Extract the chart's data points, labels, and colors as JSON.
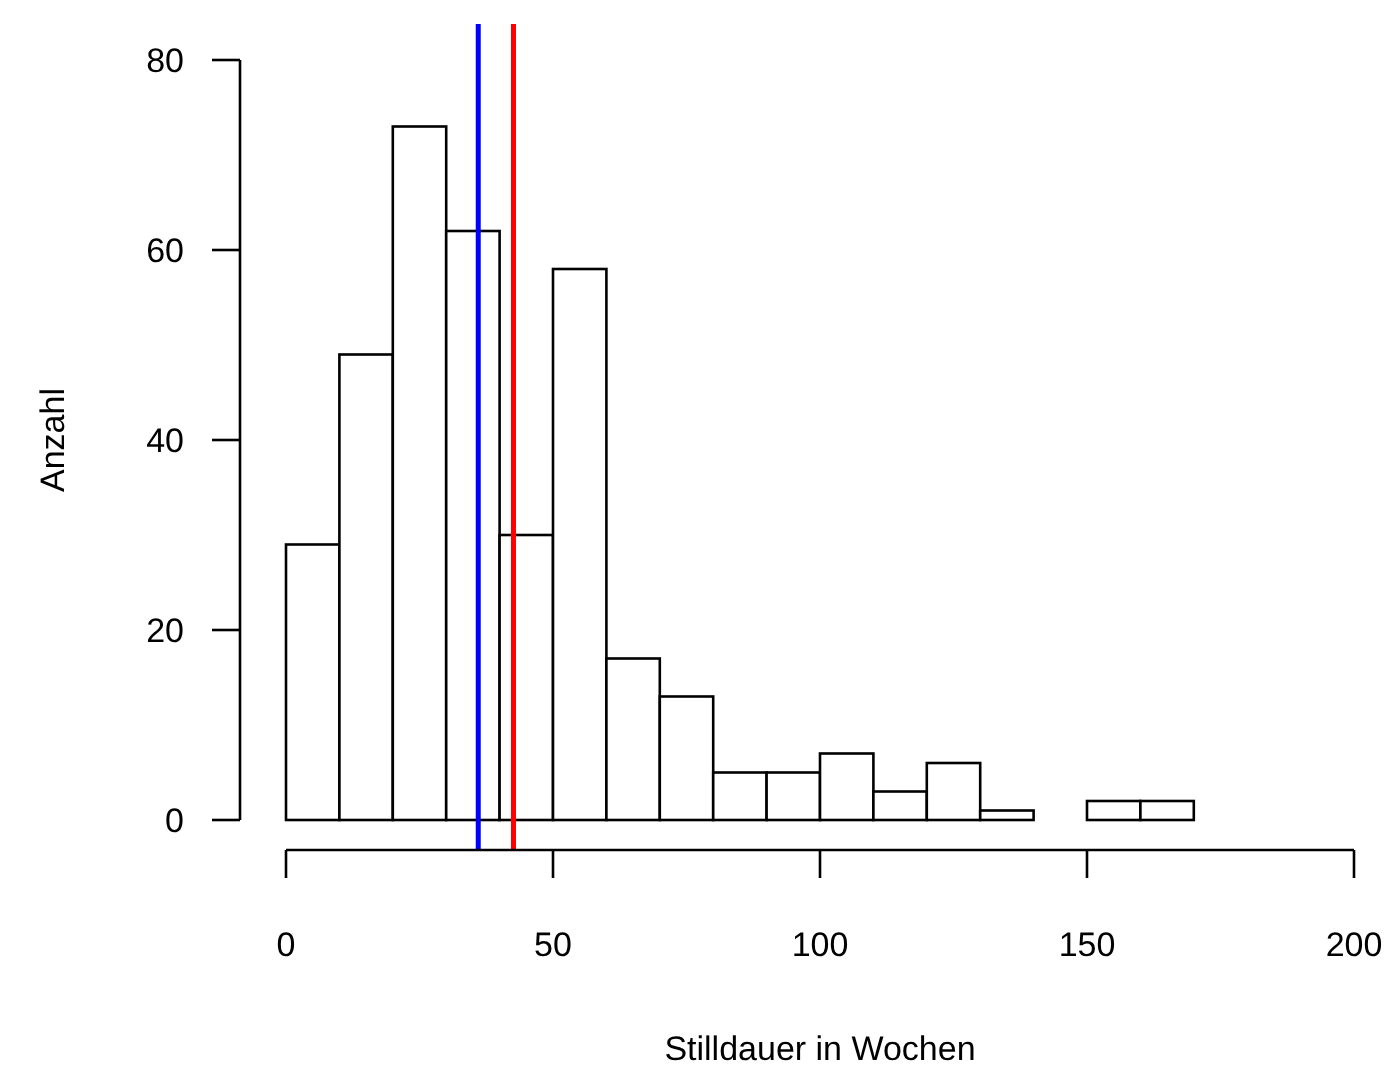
{
  "chart_data": {
    "type": "histogram",
    "xlabel": "Stilldauer in Wochen",
    "ylabel": "Anzahl",
    "bins": [
      0,
      10,
      20,
      30,
      40,
      50,
      60,
      70,
      80,
      90,
      100,
      110,
      120,
      130,
      140,
      150,
      160,
      170
    ],
    "values": [
      29,
      49,
      73,
      62,
      30,
      58,
      17,
      13,
      5,
      5,
      7,
      3,
      6,
      1,
      0,
      2,
      2
    ],
    "color": "#ffffff",
    "xlim": [
      0,
      200
    ],
    "xticks": [
      0,
      50,
      100,
      150,
      200
    ],
    "ylim": [
      0,
      80
    ],
    "yticks": [
      0,
      20,
      40,
      60,
      80
    ],
    "grid": false,
    "ref_lines": [
      {
        "axis": "x",
        "value": 36,
        "color": "#0000ff"
      },
      {
        "axis": "x",
        "value": 42.6,
        "color": "#ff0000"
      }
    ]
  }
}
